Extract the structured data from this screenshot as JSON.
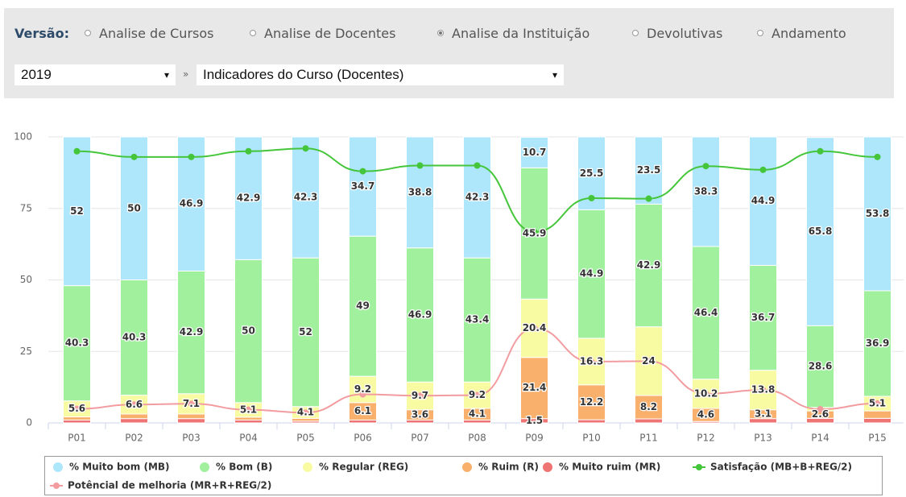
{
  "ui": {
    "version_label": "Versão:",
    "options": [
      "Analise de Cursos",
      "Analise de Docentes",
      "Analise da Instituição",
      "Devolutivas",
      "Andamento"
    ],
    "selected_option": 2,
    "year_select": "2019",
    "separator": "»",
    "indicator_select": "Indicadores do Curso (Docentes)"
  },
  "chart_data": {
    "type": "bar",
    "stacked": true,
    "categories": [
      "P01",
      "P02",
      "P03",
      "P04",
      "P05",
      "P06",
      "P07",
      "P08",
      "P09",
      "P10",
      "P11",
      "P12",
      "P13",
      "P14",
      "P15"
    ],
    "ylim": [
      0,
      100
    ],
    "yticks": [
      0,
      25,
      50,
      75,
      100
    ],
    "grid": true,
    "series": [
      {
        "name": "% Muito bom (MB)",
        "type": "bar",
        "color": "#aee6fb",
        "values": [
          52,
          50,
          46.9,
          42.9,
          42.3,
          34.7,
          38.8,
          42.3,
          10.7,
          25.5,
          23.5,
          38.3,
          44.9,
          65.8,
          53.8
        ]
      },
      {
        "name": "% Bom (B)",
        "type": "bar",
        "color": "#a0f09e",
        "values": [
          40.3,
          40.3,
          42.9,
          50,
          52,
          49,
          46.9,
          43.4,
          45.9,
          44.9,
          42.9,
          46.4,
          36.7,
          28.6,
          36.9
        ]
      },
      {
        "name": "% Regular (REG)",
        "type": "bar",
        "color": "#f8fba2",
        "values": [
          5.6,
          6.6,
          7.1,
          5.1,
          4.1,
          9.2,
          9.7,
          9.2,
          20.4,
          16.3,
          24,
          10.2,
          13.8,
          1.2,
          5.1
        ],
        "value_labels": [
          "5.6",
          "6.6",
          "7.1",
          "5.1",
          "4.1",
          "9.2",
          "9.7",
          "9.2",
          "20.4",
          "16.3",
          "24",
          "10.2",
          "13.8",
          null,
          "5.1"
        ]
      },
      {
        "name": "% Ruim (R)",
        "type": "bar",
        "color": "#f8b06c",
        "values": [
          1.1,
          1.6,
          1.6,
          1,
          1,
          6.1,
          3.6,
          4.1,
          21.4,
          12.2,
          8.2,
          4.6,
          3.1,
          2.6,
          2.6
        ],
        "value_labels": [
          null,
          null,
          null,
          null,
          null,
          "6.1",
          "3.6",
          "4.1",
          "21.4",
          "12.2",
          "8.2",
          "4.6",
          "3.1",
          "2.6",
          null
        ]
      },
      {
        "name": "% Muito ruim (MR)",
        "type": "bar",
        "color": "#ef7474",
        "values": [
          1,
          1.5,
          1.5,
          1,
          0.6,
          1,
          1,
          1,
          1.5,
          1.1,
          1.4,
          0.5,
          1.5,
          1.6,
          1.6
        ],
        "value_labels": [
          null,
          null,
          null,
          null,
          null,
          null,
          null,
          null,
          "1.5",
          null,
          null,
          null,
          null,
          null,
          null
        ]
      },
      {
        "name": "Satisfação (MB+B+REG/2)",
        "type": "line",
        "color": "#45c63a",
        "values": [
          95,
          93,
          93,
          95,
          96,
          88,
          90,
          90,
          66.8,
          78.6,
          78.4,
          89.8,
          88.5,
          95,
          93
        ]
      },
      {
        "name": "Potêncial de melhoria (MR+R+REG/2)",
        "type": "line",
        "color": "#f39ca0",
        "values": [
          4.9,
          6.4,
          6.7,
          4.6,
          3.6,
          10,
          9.5,
          9.7,
          33.1,
          21.4,
          21.6,
          10.2,
          11.5,
          4.8,
          6.8
        ]
      }
    ]
  }
}
